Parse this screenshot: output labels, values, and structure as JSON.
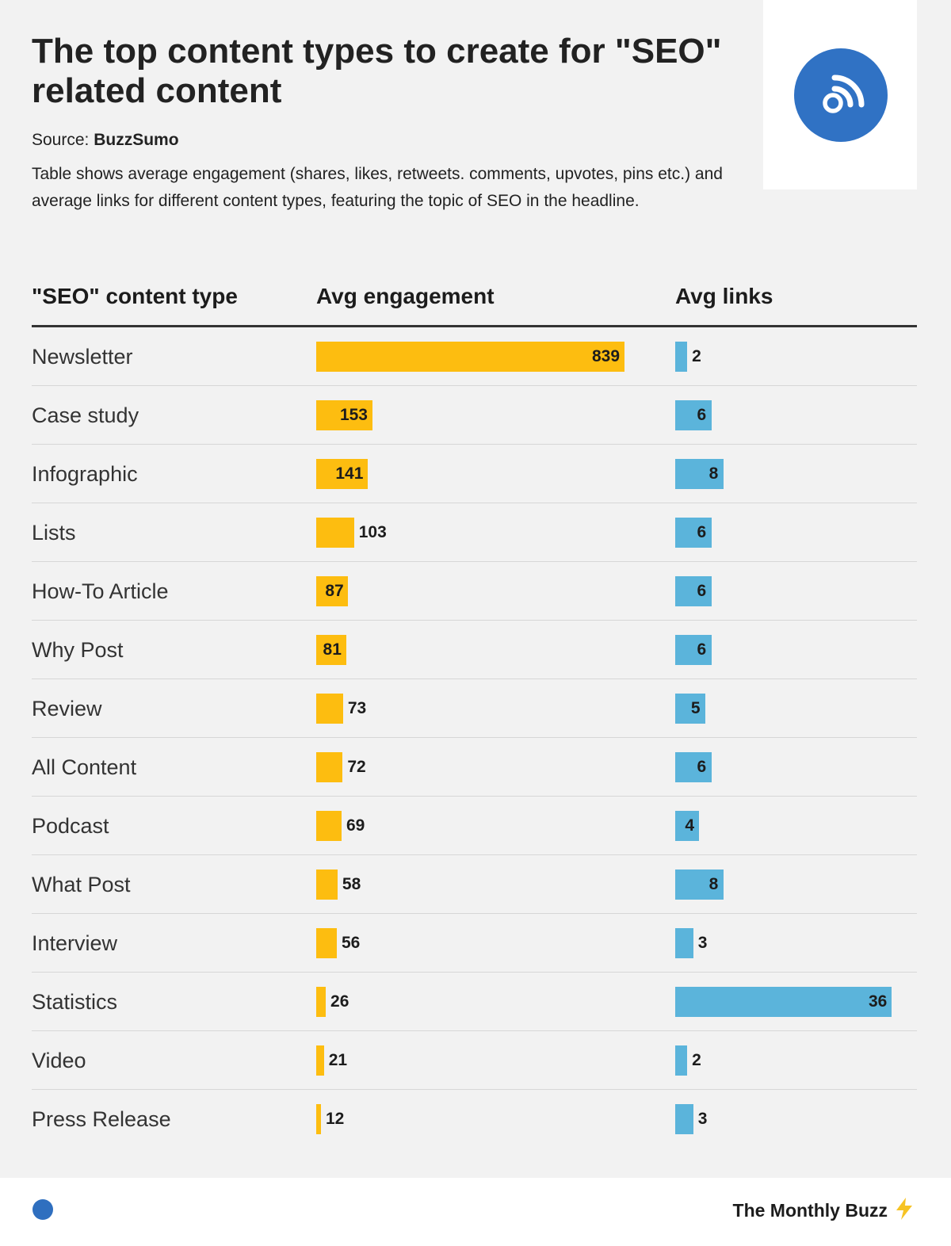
{
  "header": {
    "title": "The top content types to create for \"SEO\" related content",
    "source_label": "Source:",
    "source_name": "BuzzSumo",
    "description": "Table shows average engagement (shares, likes, retweets. comments, upvotes, pins etc.) and average links for different content types, featuring the topic of SEO in the headline.",
    "logo_icon": "rss-feed-icon",
    "logo_color": "#3072c4"
  },
  "columns": {
    "type": "\"SEO\" content type",
    "engagement": "Avg engagement",
    "links": "Avg links"
  },
  "colors": {
    "engagement_bar": "#fdbd10",
    "links_bar": "#5bb4db",
    "background": "#f2f2f2"
  },
  "chart_data": {
    "type": "bar",
    "title": "The top content types to create for \"SEO\" related content",
    "categories": [
      "Newsletter",
      "Case study",
      "Infographic",
      "Lists",
      "How-To Article",
      "Why Post",
      "Review",
      "All Content",
      "Podcast",
      "What Post",
      "Interview",
      "Statistics",
      "Video",
      "Press Release"
    ],
    "series": [
      {
        "name": "Avg engagement",
        "values": [
          839,
          153,
          141,
          103,
          87,
          81,
          73,
          72,
          69,
          58,
          56,
          26,
          21,
          12
        ]
      },
      {
        "name": "Avg links",
        "values": [
          2,
          6,
          8,
          6,
          6,
          6,
          5,
          6,
          4,
          8,
          3,
          36,
          2,
          3
        ]
      }
    ],
    "orientation": "horizontal",
    "grid": false
  },
  "footer": {
    "brand": "The Monthly Buzz",
    "brand_icon": "lightning-bolt-icon",
    "dot_color": "#2f6fbf"
  }
}
